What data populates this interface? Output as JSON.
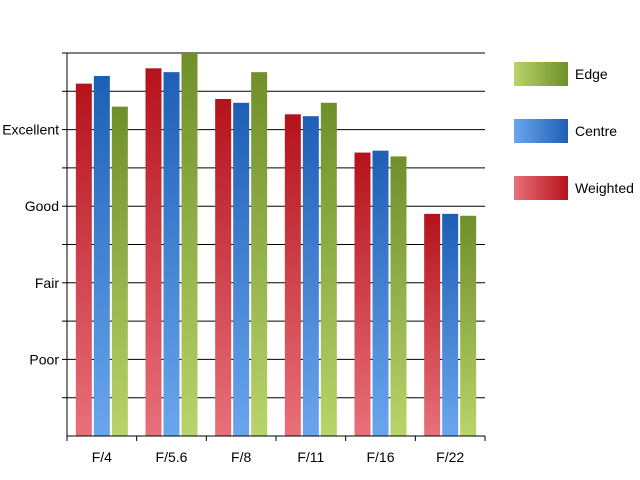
{
  "chart_data": {
    "type": "bar",
    "categories": [
      "F/4",
      "F/5.6",
      "F/8",
      "F/11",
      "F/16",
      "F/22"
    ],
    "y_tick_labels": [
      "Poor",
      "Fair",
      "Good",
      "Excellent"
    ],
    "y_tick_values": [
      2,
      4,
      6,
      8
    ],
    "ylim": [
      0,
      10
    ],
    "grid": true,
    "legend_position": "right",
    "series": [
      {
        "name": "Weighted",
        "values": [
          9.2,
          9.6,
          8.8,
          8.4,
          7.4,
          5.8
        ],
        "color_dark": "#b5121b",
        "color_light": "#e8707a"
      },
      {
        "name": "Centre",
        "values": [
          9.4,
          9.5,
          8.7,
          8.35,
          7.45,
          5.8
        ],
        "color_dark": "#1e5fb5",
        "color_light": "#6aa6ee"
      },
      {
        "name": "Edge",
        "values": [
          8.6,
          10.0,
          9.5,
          8.7,
          7.3,
          5.75
        ],
        "color_dark": "#6f8f2a",
        "color_light": "#b8d46a"
      }
    ],
    "legend_order": [
      "Edge",
      "Centre",
      "Weighted"
    ]
  }
}
